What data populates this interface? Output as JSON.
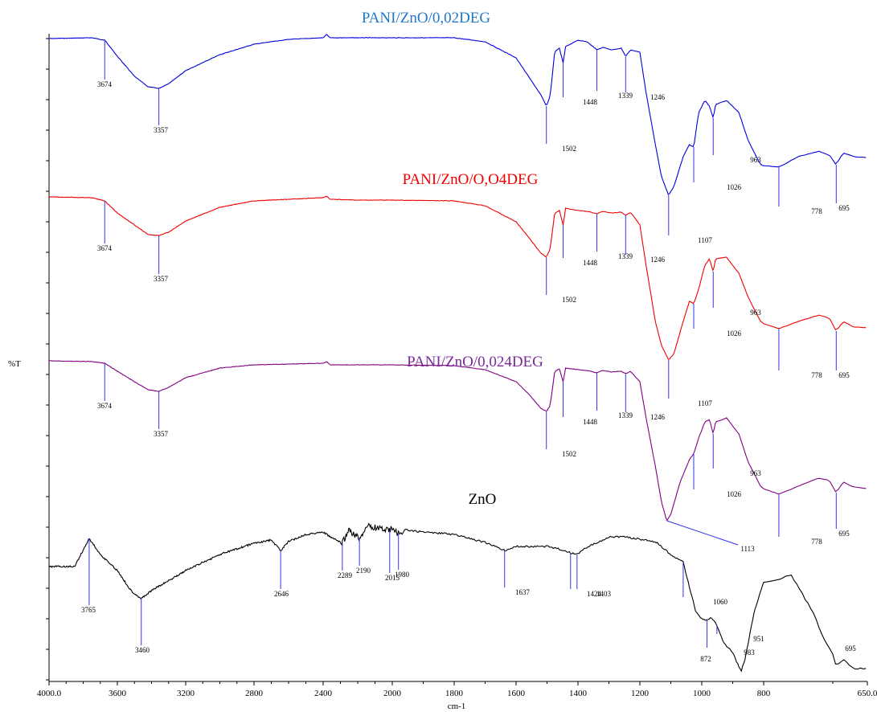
{
  "chart_data": {
    "type": "line",
    "title": "",
    "xlabel": "cm-1",
    "ylabel": "%T",
    "xlim": [
      4000.0,
      650.0
    ],
    "x_reversed": true,
    "grid": false,
    "x_tick_labels": [
      "4000.0",
      "3600",
      "3200",
      "2800",
      "2400",
      "2000",
      "1800",
      "1600",
      "1400",
      "1200",
      "1000",
      "800",
      "650.0"
    ],
    "x_ticks": [
      4000,
      3600,
      3200,
      2800,
      2400,
      2000,
      1800,
      1600,
      1400,
      1200,
      1000,
      800,
      650
    ],
    "series": [
      {
        "name": "PANI/ZnO/0,02DEG",
        "color": "#0000dd",
        "label_color": "#1f78c8",
        "peaks": [
          "3674",
          "3357",
          "1502",
          "1448",
          "1339",
          "1246",
          "1107",
          "1026",
          "963",
          "778",
          "695"
        ]
      },
      {
        "name": "PANI/ZnO/O,O4DEG",
        "color": "#ee0000",
        "label_color": "#ee0000",
        "peaks": [
          "3674",
          "3357",
          "1502",
          "1448",
          "1339",
          "1246",
          "1107",
          "1026",
          "963",
          "778",
          "695"
        ]
      },
      {
        "name": "PANI/ZnO/0,024DEG",
        "color": "#800080",
        "label_color": "#7a2a9a",
        "peaks": [
          "3674",
          "3357",
          "1502",
          "1448",
          "1339",
          "1246",
          "1113",
          "1026",
          "963",
          "778",
          "695"
        ]
      },
      {
        "name": "ZnO",
        "color": "#000000",
        "label_color": "#000000",
        "peaks": [
          "3765",
          "3460",
          "2646",
          "2289",
          "2190",
          "2015",
          "1980",
          "1637",
          "1424",
          "1403",
          "1060",
          "983",
          "951",
          "872",
          "695"
        ]
      }
    ]
  }
}
